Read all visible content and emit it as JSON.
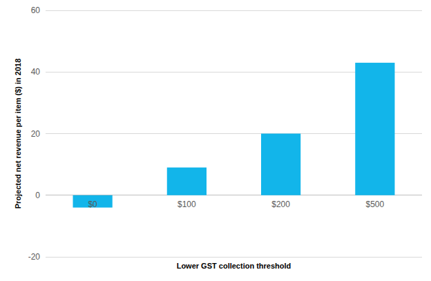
{
  "chart_data": {
    "type": "bar",
    "x_label": "Lower GST collection threshold",
    "y_label": "Projected net revenue per item ($) in 2018",
    "categories": [
      "$0",
      "$100",
      "$200",
      "$500"
    ],
    "values": [
      -4,
      9,
      20,
      43
    ],
    "color": "#12b5ea",
    "ylim": [
      -20,
      60
    ],
    "yticks": [
      -20,
      0,
      20,
      40,
      60
    ],
    "grid": true
  }
}
